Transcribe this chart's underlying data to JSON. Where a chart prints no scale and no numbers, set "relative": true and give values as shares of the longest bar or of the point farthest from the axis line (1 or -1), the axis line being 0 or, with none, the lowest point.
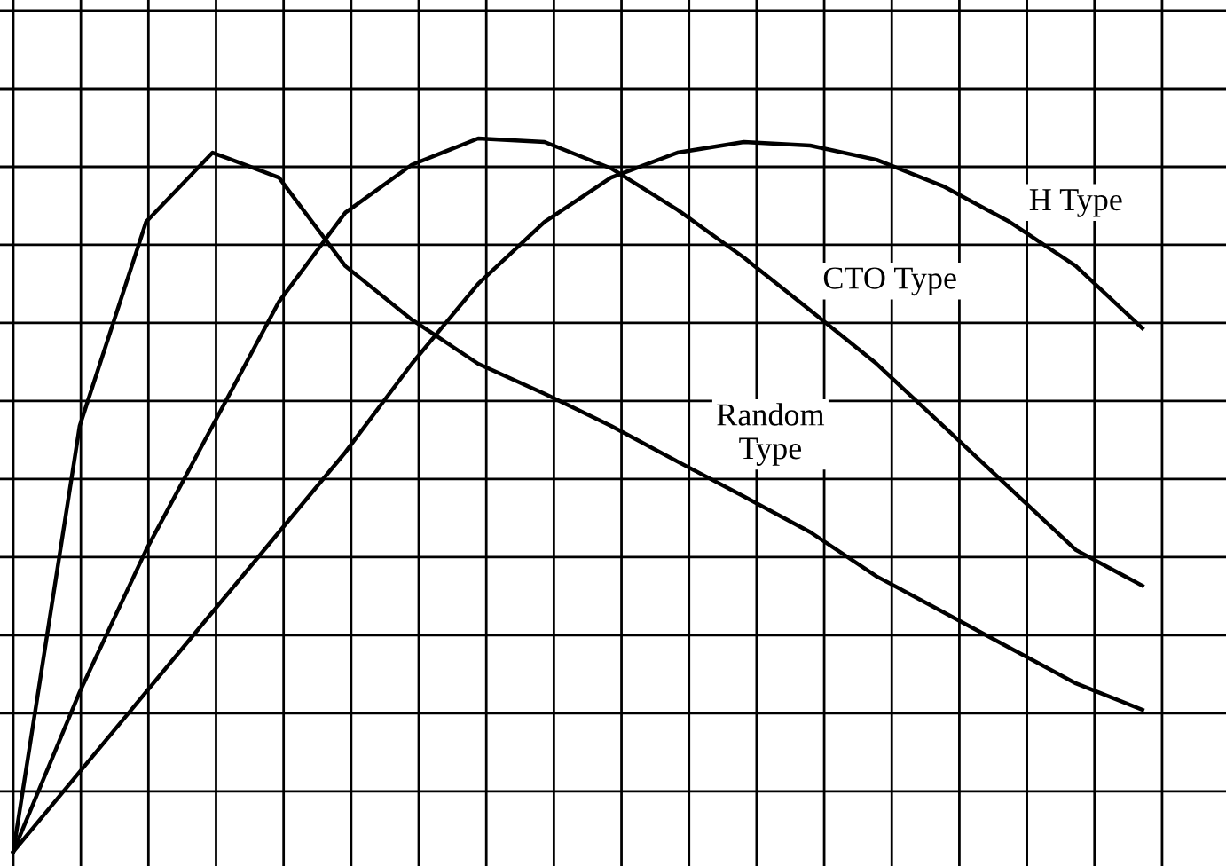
{
  "chart_data": {
    "type": "line",
    "relative": true,
    "grid": true,
    "legend": false,
    "marker": "none",
    "line_style": "solid",
    "categories": [
      null,
      null,
      null,
      null,
      null,
      null,
      null,
      null,
      null,
      null,
      null,
      null,
      null,
      null,
      null,
      null,
      null,
      null
    ],
    "series": [
      {
        "name": "Random\nType",
        "color": "#000000",
        "values": [
          0,
          0.597,
          0.883,
          0.98,
          0.945,
          0.821,
          0.746,
          0.684,
          0.642,
          0.597,
          0.547,
          0.498,
          0.448,
          0.386,
          0.336,
          0.286,
          0.236,
          0.199
        ]
      },
      {
        "name": "CTO Type",
        "color": "#000000",
        "values": [
          0,
          0.224,
          0.423,
          0.597,
          0.771,
          0.896,
          0.963,
          1.0,
          0.995,
          0.958,
          0.9,
          0.833,
          0.759,
          0.684,
          0.597,
          0.51,
          0.423,
          0.373
        ]
      },
      {
        "name": "H Type",
        "color": "#000000",
        "values": [
          0,
          0.112,
          0.224,
          0.336,
          0.448,
          0.56,
          0.684,
          0.796,
          0.883,
          0.945,
          0.98,
          0.995,
          0.99,
          0.97,
          0.933,
          0.883,
          0.821,
          0.734
        ]
      }
    ]
  }
}
